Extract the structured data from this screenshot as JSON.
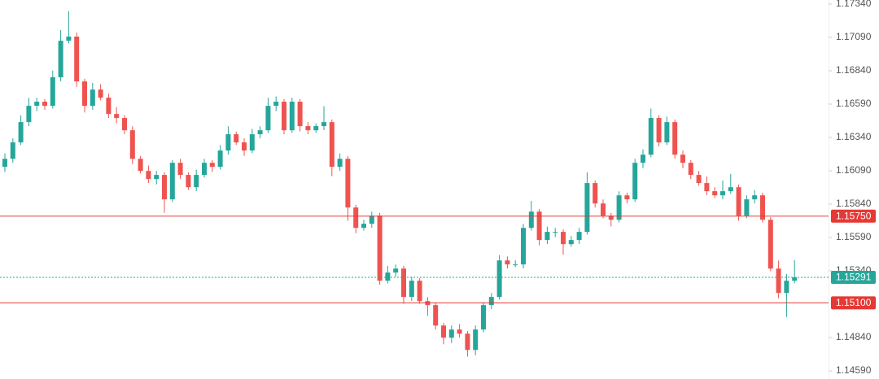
{
  "chart_data": {
    "type": "candlestick",
    "up_color": "#26a69a",
    "down_color": "#ef5350",
    "grid": false,
    "ylim": [
      1.1459,
      1.1734
    ],
    "yticks": [
      {
        "value": 1.1734,
        "label": "1.17340"
      },
      {
        "value": 1.1709,
        "label": "1.17090"
      },
      {
        "value": 1.1684,
        "label": "1.16840"
      },
      {
        "value": 1.1659,
        "label": "1.16590"
      },
      {
        "value": 1.1634,
        "label": "1.16340"
      },
      {
        "value": 1.1609,
        "label": "1.16090"
      },
      {
        "value": 1.1584,
        "label": "1.15840"
      },
      {
        "value": 1.1559,
        "label": "1.15590"
      },
      {
        "value": 1.1534,
        "label": "1.15340"
      },
      {
        "value": 1.1484,
        "label": "1.14840"
      },
      {
        "value": 1.1459,
        "label": "1.14590"
      }
    ],
    "hlines": [
      {
        "value": 1.1575,
        "label": "1.15750",
        "color": "#e53935",
        "style": "solid"
      },
      {
        "value": 1.151,
        "label": "1.15100",
        "color": "#e53935",
        "style": "solid"
      },
      {
        "value": 1.15291,
        "label": "1.15291",
        "color": "#26a69a",
        "style": "dotted"
      }
    ],
    "open": [
      1.1612,
      1.1618,
      1.16303,
      1.16455,
      1.16577,
      1.16608,
      1.16577,
      1.16791,
      1.17065,
      1.17096,
      1.1676,
      1.16577,
      1.16699,
      1.16638,
      1.16516,
      1.16486,
      1.16394,
      1.1618,
      1.16089,
      1.16028,
      1.16059,
      1.15876,
      1.1615,
      1.16059,
      1.15967,
      1.16059,
      1.1615,
      1.1612,
      1.16242,
      1.16364,
      1.16303,
      1.16242,
      1.16364,
      1.16394,
      1.16577,
      1.16608,
      1.16394,
      1.16608,
      1.16425,
      1.16394,
      1.16425,
      1.16455,
      1.1612,
      1.1618,
      1.15815,
      1.15662,
      1.15693,
      1.15754,
      1.15266,
      1.15327,
      1.15357,
      1.15144,
      1.15266,
      1.15113,
      1.15083,
      1.1493,
      1.14839,
      1.149,
      1.14869,
      1.14747,
      1.149,
      1.15083,
      1.15144,
      1.15418,
      1.15388,
      1.15388,
      1.15662,
      1.15784,
      1.15571,
      1.15632,
      1.15632,
      1.1554,
      1.15571,
      1.15632,
      1.15998,
      1.15845,
      1.15754,
      1.15723,
      1.15906,
      1.15876,
      1.1615,
      1.16211,
      1.16486,
      1.16303,
      1.16455,
      1.16211,
      1.1615,
      1.16059,
      1.15998,
      1.15937,
      1.15906,
      1.15937,
      1.15967,
      1.15754,
      1.15876,
      1.15906,
      1.15723,
      1.15357,
      1.15174,
      1.15266
    ],
    "high": [
      1.1622,
      1.16333,
      1.16505,
      1.16637,
      1.16638,
      1.16628,
      1.16841,
      1.17145,
      1.17286,
      1.17126,
      1.1678,
      1.16749,
      1.16739,
      1.16668,
      1.16566,
      1.16506,
      1.16424,
      1.162,
      1.16129,
      1.16089,
      1.16079,
      1.1617,
      1.1618,
      1.16079,
      1.16099,
      1.1618,
      1.1617,
      1.16282,
      1.16424,
      1.16384,
      1.16333,
      1.16404,
      1.16424,
      1.16637,
      1.16648,
      1.16628,
      1.16638,
      1.16628,
      1.16455,
      1.16445,
      1.16575,
      1.16475,
      1.1622,
      1.162,
      1.15835,
      1.15723,
      1.15784,
      1.15774,
      1.15377,
      1.15387,
      1.15377,
      1.15296,
      1.15286,
      1.15143,
      1.15103,
      1.1495,
      1.1493,
      1.1494,
      1.14889,
      1.1493,
      1.15103,
      1.15174,
      1.15458,
      1.15448,
      1.15418,
      1.15692,
      1.15864,
      1.15804,
      1.15672,
      1.15662,
      1.15652,
      1.15601,
      1.15662,
      1.16078,
      1.16018,
      1.15875,
      1.15774,
      1.15936,
      1.15926,
      1.1618,
      1.16251,
      1.16556,
      1.16506,
      1.16495,
      1.16475,
      1.16241,
      1.1617,
      1.16089,
      1.16048,
      1.15967,
      1.16017,
      1.16067,
      1.15987,
      1.15906,
      1.15946,
      1.15926,
      1.15743,
      1.15417,
      1.15316,
      1.15421
    ],
    "low": [
      1.1608,
      1.1615,
      1.16283,
      1.16425,
      1.16537,
      1.16547,
      1.16557,
      1.16761,
      1.17045,
      1.1672,
      1.16527,
      1.16547,
      1.16618,
      1.16486,
      1.16446,
      1.16364,
      1.1614,
      1.16069,
      1.15998,
      1.15988,
      1.15776,
      1.15856,
      1.16029,
      1.15947,
      1.15937,
      1.16039,
      1.1608,
      1.161,
      1.16212,
      1.16283,
      1.16202,
      1.16222,
      1.16334,
      1.16374,
      1.16537,
      1.16364,
      1.16374,
      1.16385,
      1.16364,
      1.16374,
      1.16395,
      1.1605,
      1.1609,
      1.15715,
      1.15622,
      1.15642,
      1.15663,
      1.15236,
      1.15246,
      1.15297,
      1.15094,
      1.15114,
      1.15093,
      1.15003,
      1.149,
      1.14789,
      1.14799,
      1.14839,
      1.14697,
      1.14707,
      1.1488,
      1.15053,
      1.15124,
      1.15358,
      1.15368,
      1.15358,
      1.15642,
      1.15531,
      1.15541,
      1.15592,
      1.1546,
      1.1552,
      1.15541,
      1.15612,
      1.15815,
      1.15734,
      1.15673,
      1.15703,
      1.15846,
      1.15856,
      1.1611,
      1.16191,
      1.16273,
      1.16283,
      1.16181,
      1.1611,
      1.16029,
      1.15978,
      1.15907,
      1.15886,
      1.15876,
      1.15917,
      1.15714,
      1.15734,
      1.15846,
      1.15703,
      1.15337,
      1.15134,
      1.14994,
      1.15246
    ],
    "close": [
      1.1618,
      1.16303,
      1.16455,
      1.16577,
      1.16608,
      1.16577,
      1.16791,
      1.17065,
      1.17096,
      1.1676,
      1.16577,
      1.16699,
      1.16638,
      1.16516,
      1.16486,
      1.16394,
      1.1618,
      1.16089,
      1.16028,
      1.16059,
      1.15876,
      1.1615,
      1.16059,
      1.15967,
      1.16059,
      1.1615,
      1.1612,
      1.16242,
      1.16364,
      1.16303,
      1.16242,
      1.16364,
      1.16394,
      1.16577,
      1.16608,
      1.16394,
      1.16608,
      1.16425,
      1.16394,
      1.16425,
      1.16455,
      1.1612,
      1.1618,
      1.15815,
      1.15662,
      1.15693,
      1.15754,
      1.15266,
      1.15327,
      1.15357,
      1.15144,
      1.15266,
      1.15113,
      1.15083,
      1.1493,
      1.14839,
      1.149,
      1.14869,
      1.14747,
      1.149,
      1.15083,
      1.15144,
      1.15418,
      1.15388,
      1.15388,
      1.15662,
      1.15784,
      1.15571,
      1.15632,
      1.15632,
      1.1554,
      1.15571,
      1.15632,
      1.15998,
      1.15845,
      1.15754,
      1.15723,
      1.15906,
      1.15876,
      1.1615,
      1.16211,
      1.16486,
      1.16303,
      1.16455,
      1.16211,
      1.1615,
      1.16059,
      1.15998,
      1.15937,
      1.15906,
      1.15937,
      1.15967,
      1.15754,
      1.15876,
      1.15906,
      1.15723,
      1.15357,
      1.15174,
      1.15266,
      1.15291
    ]
  }
}
